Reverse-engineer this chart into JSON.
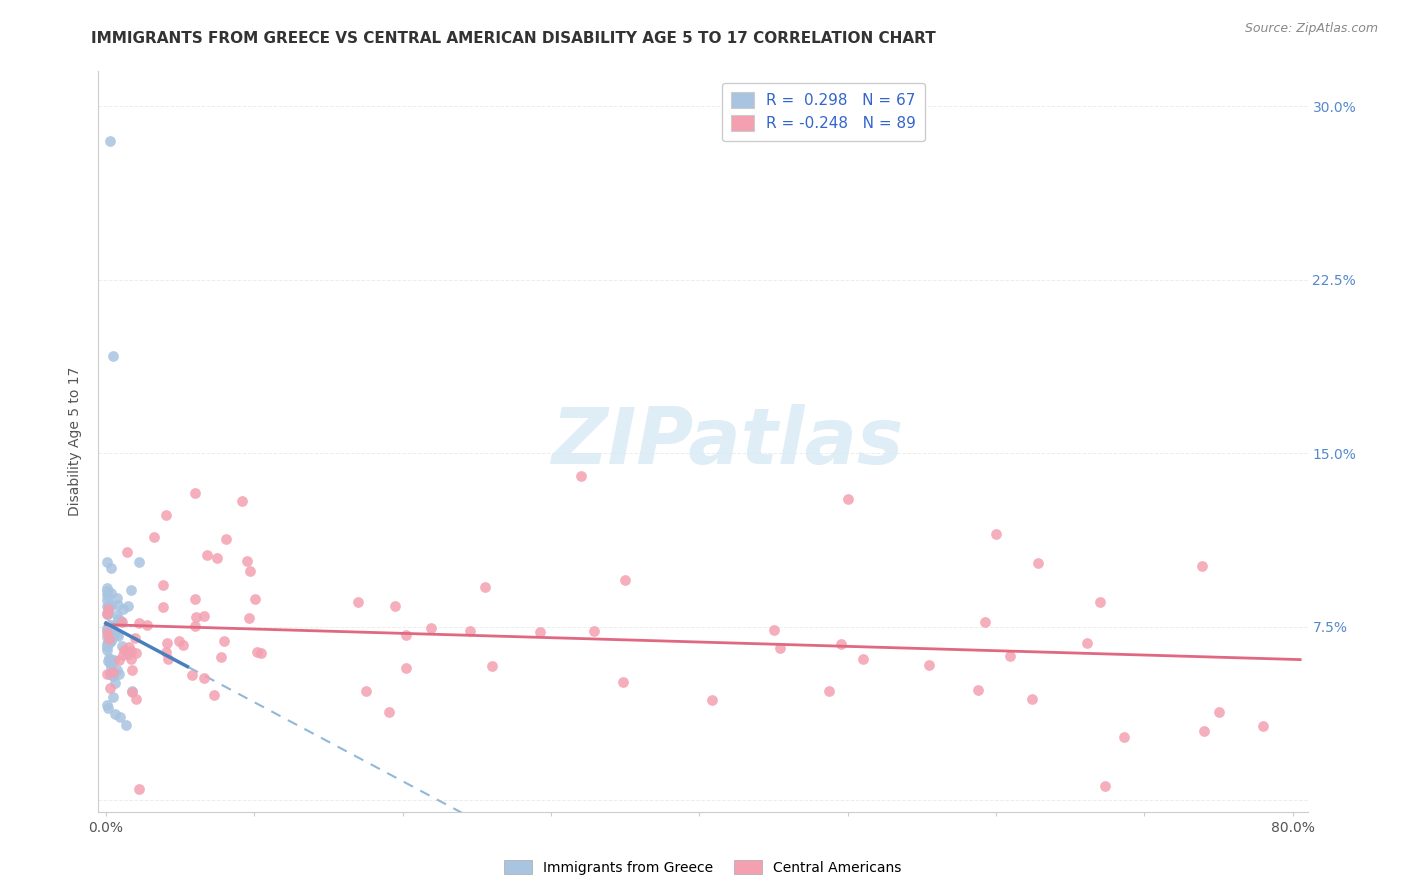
{
  "title": "IMMIGRANTS FROM GREECE VS CENTRAL AMERICAN DISABILITY AGE 5 TO 17 CORRELATION CHART",
  "source": "Source: ZipAtlas.com",
  "ylabel": "Disability Age 5 to 17",
  "xlim": [
    -0.005,
    0.81
  ],
  "ylim": [
    -0.005,
    0.315
  ],
  "x_ticks": [
    0.0,
    0.1,
    0.2,
    0.3,
    0.4,
    0.5,
    0.6,
    0.7,
    0.8
  ],
  "y_ticks": [
    0.0,
    0.075,
    0.15,
    0.225,
    0.3
  ],
  "y_tick_labels_right": [
    "",
    "7.5%",
    "15.0%",
    "22.5%",
    "30.0%"
  ],
  "greece_R": 0.298,
  "greece_N": 67,
  "central_R": -0.248,
  "central_N": 89,
  "greece_color": "#a8c4e0",
  "central_color": "#f4a0b0",
  "greece_line_color": "#4a7fbd",
  "central_line_color": "#e06880",
  "greece_dash_color": "#90b8d8",
  "watermark_color": "#daeaf5",
  "background_color": "#ffffff",
  "grid_color": "#e8e8e8",
  "title_fontsize": 11,
  "tick_label_color_right": "#5588cc",
  "greece_scatter_size": 60,
  "central_scatter_size": 60
}
